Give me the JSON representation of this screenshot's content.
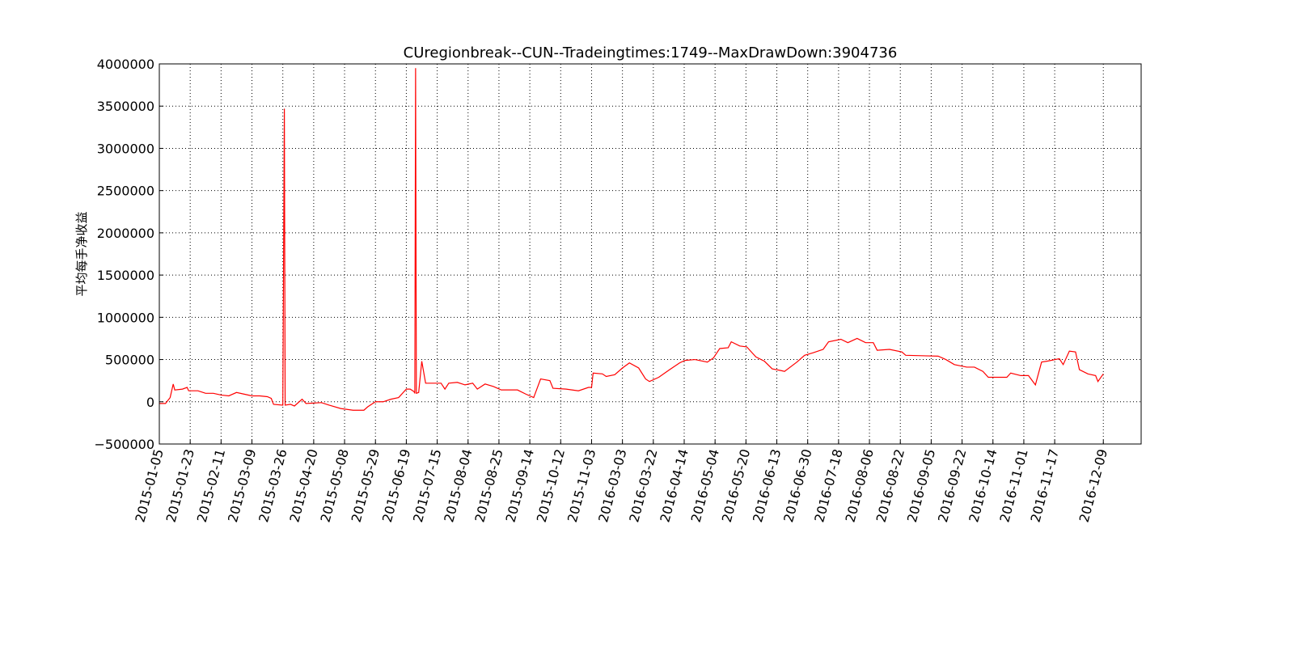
{
  "chart_data": {
    "type": "line",
    "title": "CUregionbreak--CUN--Tradeingtimes:1749--MaxDrawDown:3904736",
    "ylabel": "平均每手净收益",
    "grid": true,
    "xlim": [
      0,
      1272
    ],
    "ylim": [
      -500000,
      4000000
    ],
    "yticks": [
      {
        "value": -500000,
        "label": "−500000"
      },
      0,
      500000,
      1000000,
      1500000,
      2000000,
      2500000,
      3000000,
      3500000,
      4000000
    ],
    "xticks": [
      {
        "value": 0,
        "label": "2015-01-05"
      },
      {
        "value": 40,
        "label": "2015-01-23"
      },
      {
        "value": 80,
        "label": "2015-02-11"
      },
      {
        "value": 120,
        "label": "2015-03-09"
      },
      {
        "value": 160,
        "label": "2015-03-26"
      },
      {
        "value": 200,
        "label": "2015-04-20"
      },
      {
        "value": 240,
        "label": "2015-05-08"
      },
      {
        "value": 280,
        "label": "2015-05-29"
      },
      {
        "value": 320,
        "label": "2015-06-19"
      },
      {
        "value": 360,
        "label": "2015-07-15"
      },
      {
        "value": 400,
        "label": "2015-08-04"
      },
      {
        "value": 440,
        "label": "2015-08-25"
      },
      {
        "value": 480,
        "label": "2015-09-14"
      },
      {
        "value": 520,
        "label": "2015-10-12"
      },
      {
        "value": 560,
        "label": "2015-11-03"
      },
      {
        "value": 600,
        "label": "2016-03-03"
      },
      {
        "value": 640,
        "label": "2016-03-22"
      },
      {
        "value": 680,
        "label": "2016-04-14"
      },
      {
        "value": 720,
        "label": "2016-05-04"
      },
      {
        "value": 760,
        "label": "2016-05-20"
      },
      {
        "value": 800,
        "label": "2016-06-13"
      },
      {
        "value": 840,
        "label": "2016-06-30"
      },
      {
        "value": 880,
        "label": "2016-07-18"
      },
      {
        "value": 920,
        "label": "2016-08-06"
      },
      {
        "value": 960,
        "label": "2016-08-22"
      },
      {
        "value": 1000,
        "label": "2016-09-05"
      },
      {
        "value": 1040,
        "label": "2016-09-22"
      },
      {
        "value": 1080,
        "label": "2016-10-14"
      },
      {
        "value": 1120,
        "label": "2016-11-01"
      },
      {
        "value": 1160,
        "label": "2016-11-17"
      },
      {
        "value": 1223,
        "label": "2016-12-09"
      }
    ],
    "series": [
      {
        "color": "#ff0000",
        "x": [
          0,
          8,
          14,
          18,
          20,
          30,
          36,
          38,
          50,
          60,
          70,
          80,
          90,
          100,
          110,
          120,
          130,
          140,
          145,
          148,
          160,
          162,
          163,
          170,
          175,
          185,
          190,
          210,
          220,
          235,
          251,
          265,
          270,
          280,
          290,
          300,
          310,
          320,
          325,
          330,
          331,
          332,
          333,
          336,
          340,
          345,
          365,
          370,
          375,
          386,
          396,
          406,
          412,
          422,
          433,
          443,
          464,
          475,
          485,
          494,
          506,
          510,
          527,
          543,
          556,
          560,
          562,
          574,
          579,
          590,
          600,
          609,
          621,
          630,
          635,
          647,
          661,
          674,
          681,
          694,
          710,
          718,
          726,
          737,
          741,
          752,
          761,
          773,
          784,
          794,
          805,
          810,
          826,
          836,
          847,
          860,
          867,
          883,
          892,
          904,
          915,
          925,
          930,
          946,
          962,
          967,
          1009,
          1019,
          1030,
          1046,
          1056,
          1067,
          1074,
          1098,
          1103,
          1116,
          1126,
          1135,
          1143,
          1150,
          1166,
          1171,
          1179,
          1187,
          1192,
          1203,
          1213,
          1216,
          1223
        ],
        "values": [
          -20000,
          -20000,
          50000,
          210000,
          140000,
          150000,
          170000,
          130000,
          130000,
          100000,
          100000,
          80000,
          70000,
          110000,
          90000,
          70000,
          70000,
          60000,
          40000,
          -30000,
          -40000,
          3470000,
          -40000,
          -30000,
          -50000,
          30000,
          -20000,
          -10000,
          -40000,
          -80000,
          -100000,
          -100000,
          -60000,
          0,
          0,
          30000,
          50000,
          150000,
          150000,
          120000,
          100000,
          3950000,
          100000,
          110000,
          480000,
          220000,
          220000,
          150000,
          220000,
          230000,
          200000,
          220000,
          150000,
          210000,
          180000,
          140000,
          140000,
          90000,
          50000,
          270000,
          250000,
          160000,
          150000,
          130000,
          170000,
          170000,
          340000,
          330000,
          300000,
          320000,
          400000,
          460000,
          400000,
          270000,
          240000,
          290000,
          380000,
          460000,
          490000,
          500000,
          470000,
          520000,
          630000,
          640000,
          710000,
          660000,
          650000,
          530000,
          480000,
          390000,
          370000,
          360000,
          470000,
          550000,
          580000,
          620000,
          710000,
          740000,
          700000,
          750000,
          700000,
          700000,
          610000,
          620000,
          590000,
          550000,
          540000,
          500000,
          440000,
          410000,
          410000,
          360000,
          290000,
          290000,
          340000,
          310000,
          310000,
          200000,
          470000,
          480000,
          510000,
          440000,
          600000,
          590000,
          380000,
          330000,
          310000,
          240000,
          330000
        ]
      }
    ]
  }
}
